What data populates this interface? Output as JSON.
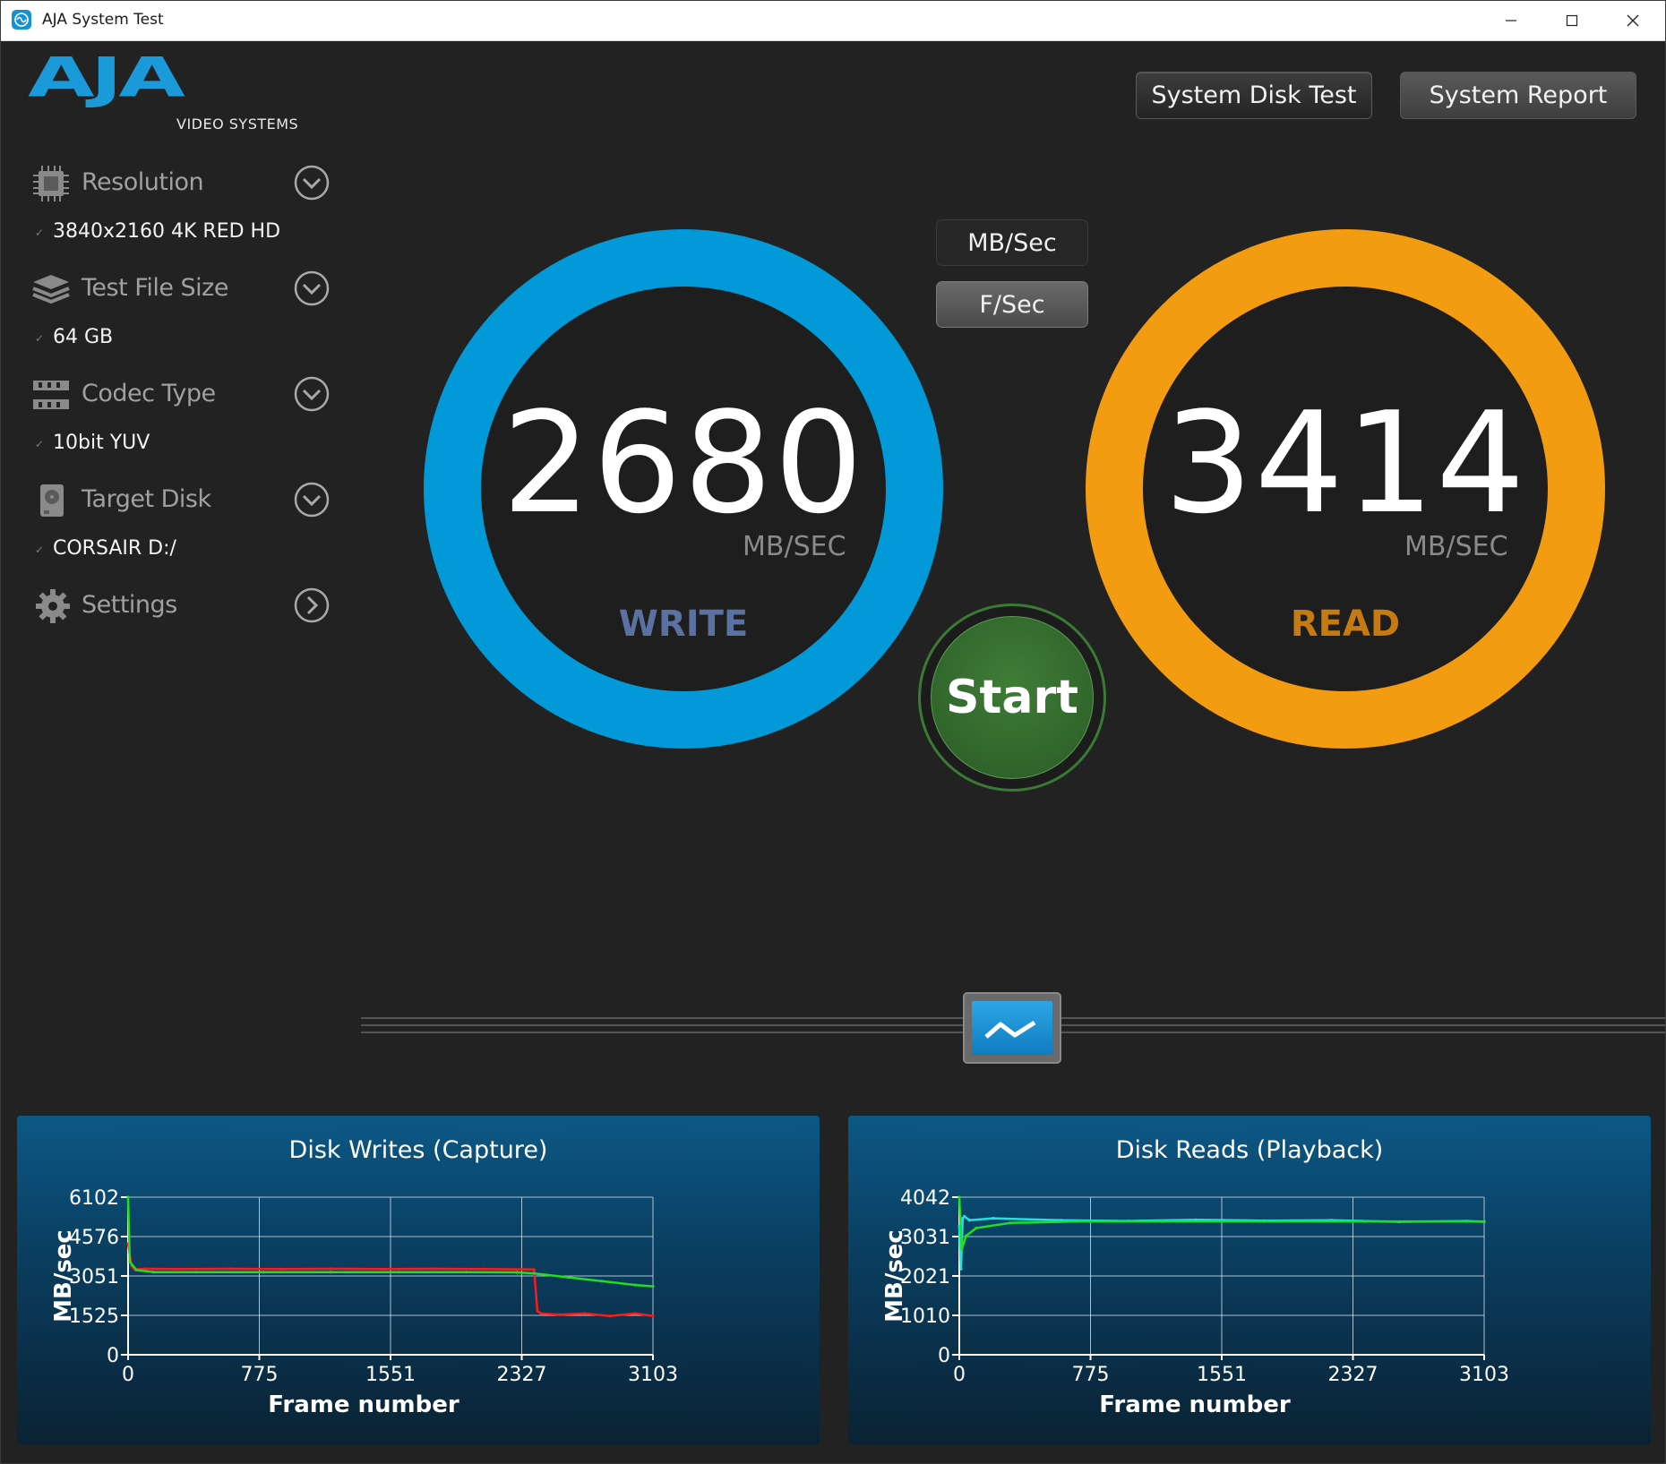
{
  "window": {
    "title": "AJA System Test"
  },
  "logo": {
    "text": "AJA",
    "subtitle": "VIDEO SYSTEMS"
  },
  "toolbar": {
    "disk_test_label": "System Disk Test",
    "report_label": "System Report"
  },
  "sidebar": {
    "items": [
      {
        "label": "Resolution",
        "value": "3840x2160 4K RED HD",
        "icon": "chip-icon"
      },
      {
        "label": "Test File Size",
        "value": "64 GB",
        "icon": "layers-icon"
      },
      {
        "label": "Codec Type",
        "value": "10bit YUV",
        "icon": "film-icon"
      },
      {
        "label": "Target Disk",
        "value": "CORSAIR D:/",
        "icon": "hard-disk-icon"
      },
      {
        "label": "Settings",
        "value": "",
        "icon": "gear-icon"
      }
    ]
  },
  "units": {
    "mb_label": "MB/Sec",
    "fs_label": "F/Sec"
  },
  "write": {
    "value": "2680",
    "unit": "MB/SEC",
    "label": "WRITE",
    "color": "#0199d8",
    "label_color": "#5a71a1"
  },
  "read": {
    "value": "3414",
    "unit": "MB/SEC",
    "label": "READ",
    "color": "#f39c12",
    "label_color": "#c57a12"
  },
  "start": {
    "label": "Start",
    "color": "#356f30"
  },
  "chart_data": [
    {
      "type": "line",
      "title": "Disk Writes (Capture)",
      "xlabel": "Frame number",
      "ylabel": "MB/sec",
      "xticks": [
        "0",
        "775",
        "1551",
        "2327",
        "3103"
      ],
      "yticks": [
        "0",
        "1525",
        "3051",
        "4576",
        "6102"
      ],
      "xlim": [
        0,
        3103
      ],
      "ylim": [
        0,
        6102
      ],
      "grid": true,
      "series": [
        {
          "color": "#ff1a1a",
          "x": [
            0,
            20,
            40,
            100,
            300,
            600,
            900,
            1200,
            1500,
            1800,
            2100,
            2400,
            2420,
            2440,
            2550,
            2700,
            2850,
            3000,
            3103
          ],
          "y": [
            4300,
            3450,
            3300,
            3330,
            3320,
            3330,
            3320,
            3330,
            3320,
            3330,
            3320,
            3300,
            1700,
            1600,
            1550,
            1600,
            1500,
            1600,
            1500
          ]
        },
        {
          "color": "#22dd22",
          "x": [
            0,
            10,
            50,
            150,
            400,
            800,
            1200,
            1600,
            2000,
            2300,
            2400,
            2600,
            2800,
            3000,
            3103
          ],
          "y": [
            6102,
            3600,
            3280,
            3200,
            3200,
            3200,
            3200,
            3200,
            3200,
            3190,
            3150,
            3000,
            2850,
            2700,
            2650
          ]
        }
      ]
    },
    {
      "type": "line",
      "title": "Disk Reads (Playback)",
      "xlabel": "Frame number",
      "ylabel": "MB/sec",
      "xticks": [
        "0",
        "775",
        "1551",
        "2327",
        "3103"
      ],
      "yticks": [
        "0",
        "1010",
        "2021",
        "3031",
        "4042"
      ],
      "xlim": [
        0,
        3103
      ],
      "ylim": [
        0,
        4042
      ],
      "grid": true,
      "series": [
        {
          "color": "#22e0e0",
          "x": [
            0,
            10,
            20,
            30,
            60,
            200,
            600,
            1000,
            1400,
            1800,
            2200,
            2600,
            3000,
            3103
          ],
          "y": [
            3300,
            2200,
            3500,
            3550,
            3450,
            3500,
            3450,
            3430,
            3460,
            3440,
            3450,
            3410,
            3430,
            3410
          ]
        },
        {
          "color": "#22dd22",
          "x": [
            0,
            15,
            40,
            100,
            300,
            700,
            1200,
            1800,
            2400,
            3000,
            3103
          ],
          "y": [
            4042,
            2700,
            3050,
            3250,
            3380,
            3420,
            3420,
            3420,
            3420,
            3420,
            3420
          ]
        }
      ]
    }
  ]
}
